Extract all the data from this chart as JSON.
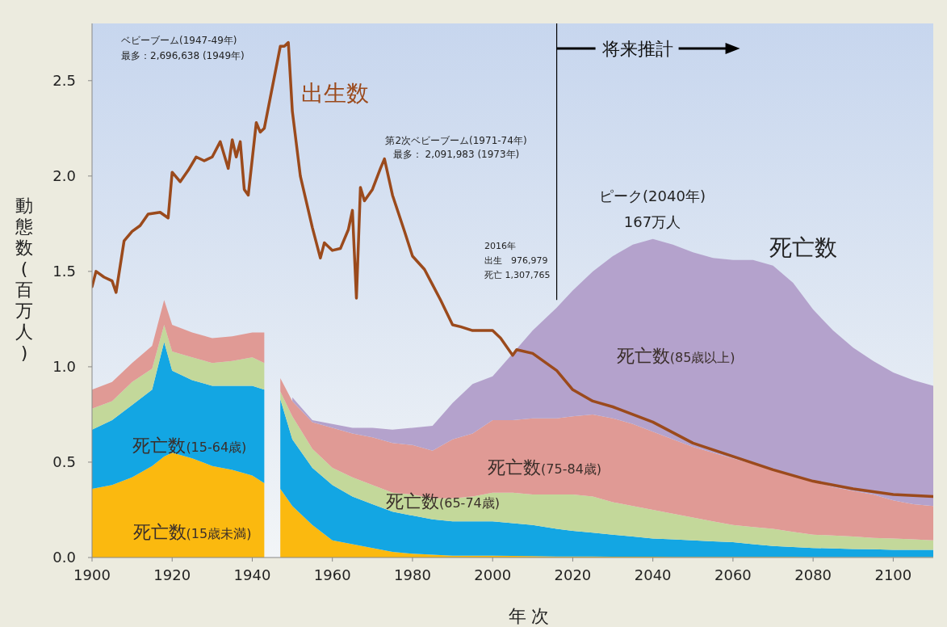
{
  "chart_data": {
    "type": "area",
    "stacked": true,
    "xlabel": "年 次",
    "ylabel": "動態数(百万人)",
    "xlim": [
      1900,
      2110
    ],
    "xticks": [
      1900,
      1920,
      1940,
      1960,
      1980,
      2000,
      2020,
      2040,
      2060,
      2080,
      2100
    ],
    "ylim": [
      0,
      2.8
    ],
    "yticks": [
      {
        "value": 0,
        "label": "0.0"
      },
      {
        "value": 0.5,
        "label": "0.5"
      },
      {
        "value": 1,
        "label": "1.0"
      },
      {
        "value": 1.5,
        "label": "1.5"
      },
      {
        "value": 2,
        "label": "2.0"
      },
      {
        "value": 2.5,
        "label": "2.5"
      }
    ],
    "x": [
      1900,
      1905,
      1910,
      1915,
      1918,
      1920,
      1925,
      1930,
      1935,
      1940,
      1943,
      1945,
      1947,
      1950,
      1955,
      1960,
      1965,
      1970,
      1975,
      1980,
      1985,
      1990,
      1995,
      2000,
      2005,
      2010,
      2016,
      2020,
      2025,
      2030,
      2035,
      2040,
      2045,
      2050,
      2055,
      2060,
      2065,
      2070,
      2075,
      2080,
      2085,
      2090,
      2095,
      2100,
      2105,
      2110
    ],
    "series": [
      {
        "name": "死亡数(15歳未満)",
        "color": "#fbb90f",
        "values": [
          0.36,
          0.38,
          0.42,
          0.48,
          0.53,
          0.55,
          0.52,
          0.48,
          0.46,
          0.43,
          0.39,
          null,
          0.36,
          0.27,
          0.17,
          0.09,
          0.07,
          0.05,
          0.03,
          0.02,
          0.015,
          0.01,
          0.01,
          0.01,
          0.008,
          0.007,
          0.005,
          0.005,
          0.005,
          0.004,
          0.004,
          0.004,
          0.003,
          0.003,
          0.003,
          0.003,
          0.003,
          0.003,
          0.003,
          0.002,
          0.002,
          0.002,
          0.002,
          0.002,
          0.002,
          0.002
        ]
      },
      {
        "name": "死亡数(15-64歳)",
        "color": "#13a6e3",
        "values": [
          0.31,
          0.34,
          0.38,
          0.4,
          0.6,
          0.43,
          0.41,
          0.42,
          0.44,
          0.47,
          0.49,
          null,
          0.47,
          0.35,
          0.3,
          0.29,
          0.25,
          0.23,
          0.21,
          0.2,
          0.185,
          0.18,
          0.18,
          0.18,
          0.172,
          0.163,
          0.145,
          0.135,
          0.125,
          0.116,
          0.106,
          0.096,
          0.092,
          0.087,
          0.082,
          0.077,
          0.067,
          0.057,
          0.052,
          0.048,
          0.046,
          0.043,
          0.041,
          0.038,
          0.038,
          0.038
        ]
      },
      {
        "name": "死亡数(65-74歳)",
        "color": "#c3d89a",
        "values": [
          0.11,
          0.1,
          0.12,
          0.11,
          0.09,
          0.1,
          0.12,
          0.12,
          0.13,
          0.15,
          0.14,
          null,
          0.04,
          0.12,
          0.1,
          0.09,
          0.1,
          0.1,
          0.1,
          0.11,
          0.11,
          0.12,
          0.13,
          0.15,
          0.16,
          0.16,
          0.18,
          0.19,
          0.19,
          0.17,
          0.16,
          0.15,
          0.135,
          0.12,
          0.105,
          0.09,
          0.09,
          0.09,
          0.08,
          0.07,
          0.067,
          0.065,
          0.06,
          0.06,
          0.055,
          0.05
        ]
      },
      {
        "name": "死亡数(75-84歳)",
        "color": "#e09a95",
        "values": [
          0.1,
          0.1,
          0.1,
          0.12,
          0.13,
          0.14,
          0.13,
          0.13,
          0.13,
          0.13,
          0.16,
          null,
          0.07,
          0.08,
          0.14,
          0.21,
          0.23,
          0.25,
          0.26,
          0.26,
          0.25,
          0.31,
          0.33,
          0.38,
          0.38,
          0.4,
          0.4,
          0.41,
          0.43,
          0.44,
          0.43,
          0.41,
          0.39,
          0.37,
          0.36,
          0.35,
          0.33,
          0.31,
          0.295,
          0.28,
          0.255,
          0.24,
          0.227,
          0.2,
          0.185,
          0.18
        ]
      },
      {
        "name": "死亡数(85歳以上)",
        "color": "#b4a2cc",
        "values": [
          null,
          null,
          null,
          null,
          null,
          null,
          null,
          null,
          null,
          null,
          null,
          null,
          null,
          0.02,
          0.01,
          0.02,
          0.03,
          0.05,
          0.07,
          0.09,
          0.13,
          0.19,
          0.26,
          0.23,
          0.35,
          0.46,
          0.58,
          0.66,
          0.75,
          0.85,
          0.94,
          1.01,
          1.02,
          1.02,
          1.02,
          1.04,
          1.07,
          1.07,
          1.01,
          0.9,
          0.82,
          0.75,
          0.7,
          0.67,
          0.65,
          0.63
        ]
      },
      {
        "type": "line",
        "name": "出生数",
        "color": "#9b4a1c",
        "x": [
          1900,
          1901,
          1903,
          1905,
          1906,
          1908,
          1910,
          1912,
          1914,
          1917,
          1919,
          1920,
          1922,
          1924,
          1926,
          1928,
          1930,
          1932,
          1934,
          1935,
          1936,
          1937,
          1938,
          1939,
          1941,
          1942,
          1943,
          1947,
          1948,
          1949,
          1950,
          1952,
          1955,
          1957,
          1958,
          1960,
          1962,
          1964,
          1965,
          1966,
          1967,
          1968,
          1970,
          1972,
          1973,
          1975,
          1978,
          1980,
          1983,
          1985,
          1987,
          1990,
          1992,
          1995,
          1997,
          2000,
          2002,
          2005,
          2006,
          2010,
          2016,
          2020,
          2025,
          2030,
          2040,
          2050,
          2060,
          2070,
          2080,
          2090,
          2100,
          2110
        ],
        "values": [
          1.42,
          1.5,
          1.47,
          1.45,
          1.39,
          1.66,
          1.71,
          1.74,
          1.8,
          1.81,
          1.78,
          2.02,
          1.97,
          2.03,
          2.1,
          2.08,
          2.1,
          2.18,
          2.04,
          2.19,
          2.1,
          2.18,
          1.93,
          1.9,
          2.28,
          2.23,
          2.25,
          2.68,
          2.68,
          2.7,
          2.34,
          2.0,
          1.73,
          1.57,
          1.65,
          1.61,
          1.62,
          1.72,
          1.82,
          1.36,
          1.94,
          1.87,
          1.93,
          2.04,
          2.09,
          1.9,
          1.71,
          1.58,
          1.51,
          1.43,
          1.35,
          1.22,
          1.21,
          1.19,
          1.19,
          1.19,
          1.15,
          1.06,
          1.09,
          1.07,
          0.98,
          0.88,
          0.82,
          0.79,
          0.71,
          0.6,
          0.53,
          0.46,
          0.4,
          0.36,
          0.33,
          0.32
        ]
      }
    ],
    "ref_lines": [
      {
        "axis": "x",
        "value": 2016,
        "label": "将来推計",
        "color": "#000000"
      }
    ],
    "annotations": [
      "ベビーブーム(1947-49年)",
      "最多：2,696,638 (1949年)",
      "第2次ベビーブーム(1971-74年)",
      "最多： 2,091,983 (1973年)",
      "2016年",
      "出生　976,979",
      "死亡 1,307,765",
      "ピーク(2040年)",
      "167万人",
      "死亡数"
    ]
  }
}
